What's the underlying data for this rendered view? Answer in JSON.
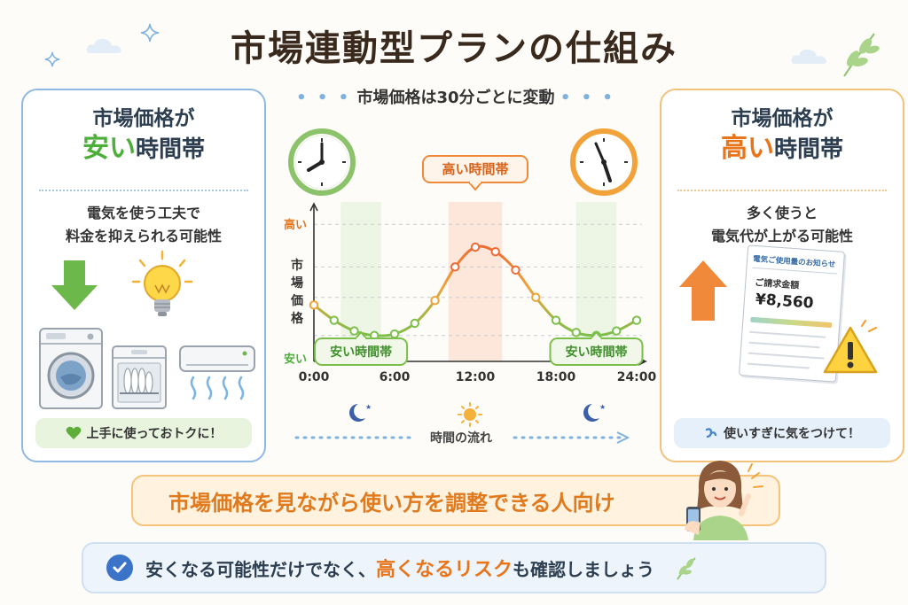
{
  "title": "市場連動型プランの仕組み",
  "center": {
    "header": "市場価格は30分ごとに変動",
    "time_flow": "時間の流れ"
  },
  "left_panel": {
    "title_line1": "市場価格が",
    "title_emph": "安い",
    "title_rest": "時間帯",
    "desc_line1": "電気を使う工夫で",
    "desc_line2": "料金を抑えられる可能性",
    "pill": "上手に使っておトクに！",
    "accent": "#4caf3a"
  },
  "right_panel": {
    "title_line1": "市場価格が",
    "title_emph": "高い",
    "title_rest": "時間帯",
    "desc_line1": "多く使うと",
    "desc_line2": "電気代が上がる可能性",
    "pill": "使いすぎに気をつけて！",
    "bill_title": "電気ご使用量のお知らせ",
    "bill_label": "ご請求金額",
    "bill_amount": "¥8,560",
    "accent": "#e8751a"
  },
  "chart_data": {
    "type": "line",
    "ylabel": "市場価格",
    "ytick_labels": [
      "高い",
      "安い"
    ],
    "x_ticks": [
      "0:00",
      "6:00",
      "12:00",
      "18:00",
      "24:00"
    ],
    "x": [
      0,
      1.5,
      3,
      4.5,
      6,
      7.5,
      9,
      10.5,
      12,
      13.5,
      15,
      16.5,
      18,
      19.5,
      21,
      22.5,
      24
    ],
    "values": [
      0.37,
      0.27,
      0.2,
      0.17,
      0.18,
      0.25,
      0.4,
      0.62,
      0.75,
      0.72,
      0.6,
      0.42,
      0.27,
      0.19,
      0.17,
      0.2,
      0.27
    ],
    "xlim": [
      0,
      24
    ],
    "ylim": [
      0,
      1
    ],
    "bands": [
      {
        "type": "low",
        "from": 2,
        "to": 5,
        "label": "安い時間帯"
      },
      {
        "type": "high",
        "from": 10,
        "to": 14,
        "label": "高い時間帯"
      },
      {
        "type": "low",
        "from": 19.5,
        "to": 22.5,
        "label": "安い時間帯"
      }
    ],
    "grid": true
  },
  "banner": "市場価格を見ながら使い方を調整できる人向け",
  "bottom": {
    "part1": "安くなる可能性だけでなく、",
    "highlight": "高くなるリスク",
    "part2": "も確認しましょう"
  }
}
